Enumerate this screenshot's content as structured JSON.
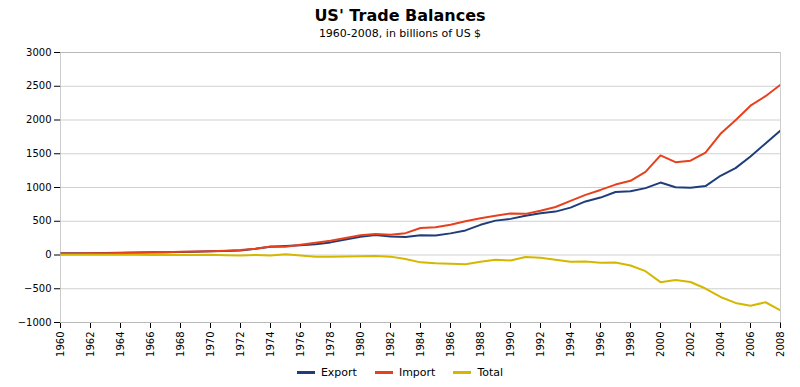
{
  "chart_data": {
    "type": "line",
    "title": "US' Trade Balances",
    "subtitle": "1960-2008, in billions of US $",
    "x": [
      1960,
      1961,
      1962,
      1963,
      1964,
      1965,
      1966,
      1967,
      1968,
      1969,
      1970,
      1971,
      1972,
      1973,
      1974,
      1975,
      1976,
      1977,
      1978,
      1979,
      1980,
      1981,
      1982,
      1983,
      1984,
      1985,
      1986,
      1987,
      1988,
      1989,
      1990,
      1991,
      1992,
      1993,
      1994,
      1995,
      1996,
      1997,
      1998,
      1999,
      2000,
      2001,
      2002,
      2003,
      2004,
      2005,
      2006,
      2007,
      2008
    ],
    "series": [
      {
        "name": "Export",
        "color": "#1F3D7A",
        "values": [
          25.9,
          26.4,
          27.7,
          29.6,
          33.3,
          35.3,
          38.9,
          41.3,
          45.5,
          49.3,
          56.6,
          59.7,
          67.2,
          91.2,
          120.9,
          132.6,
          142.8,
          158.8,
          186.9,
          230.1,
          271.8,
          294.4,
          275.2,
          266.1,
          291.1,
          288.9,
          320.5,
          363.9,
          447.2,
          509.3,
          535.2,
          581.1,
          616.9,
          642.9,
          702.1,
          793.5,
          850.5,
          932.8,
          944.4,
          990.8,
          1073.0,
          1003.9,
          997.8,
          1020.5,
          1173.8,
          1287.4,
          1459.7,
          1652.7,
          1843.0
        ]
      },
      {
        "name": "Import",
        "color": "#E8401C",
        "values": [
          22.4,
          22.7,
          25.0,
          26.1,
          28.1,
          31.5,
          37.1,
          39.8,
          46.6,
          50.5,
          54.4,
          62.3,
          74.2,
          91.2,
          127.5,
          122.7,
          151.9,
          182.4,
          212.3,
          252.7,
          291.2,
          310.6,
          299.4,
          323.9,
          400.2,
          410.9,
          448.5,
          499.3,
          545.7,
          580.8,
          616.1,
          609.5,
          656.1,
          711.7,
          801.0,
          890.8,
          964.0,
          1043.3,
          1099.5,
          1230.6,
          1475.4,
          1375.5,
          1397.4,
          1517.0,
          1795.5,
          1997.2,
          2211.7,
          2352.7,
          2523.0
        ]
      },
      {
        "name": "Total",
        "color": "#D4B800",
        "values": [
          3.5,
          3.7,
          2.7,
          3.5,
          5.2,
          3.8,
          1.8,
          1.5,
          -1.1,
          -1.2,
          2.2,
          -2.6,
          -7.0,
          0.0,
          -6.6,
          9.9,
          -9.1,
          -24.6,
          -25.4,
          -22.6,
          -19.4,
          -16.2,
          -24.2,
          -57.8,
          -109.1,
          -122.0,
          -128.0,
          -135.4,
          -98.5,
          -71.5,
          -80.9,
          -28.4,
          -39.2,
          -68.8,
          -98.9,
          -97.3,
          -113.5,
          -110.5,
          -155.1,
          -239.8,
          -402.4,
          -371.6,
          -399.6,
          -496.5,
          -621.7,
          -709.8,
          -752.0,
          -700.0,
          -819.0
        ]
      }
    ],
    "xlim": [
      1960,
      2008
    ],
    "xticks": [
      1960,
      1962,
      1964,
      1966,
      1968,
      1970,
      1972,
      1974,
      1976,
      1978,
      1980,
      1982,
      1984,
      1986,
      1988,
      1990,
      1992,
      1994,
      1996,
      1998,
      2000,
      2002,
      2004,
      2006,
      2008
    ],
    "ylim": [
      -1000,
      3000
    ],
    "yticks": [
      -1000,
      -500,
      0,
      500,
      1000,
      1500,
      2000,
      2500,
      3000
    ],
    "grid": true,
    "legend": "bottom"
  }
}
